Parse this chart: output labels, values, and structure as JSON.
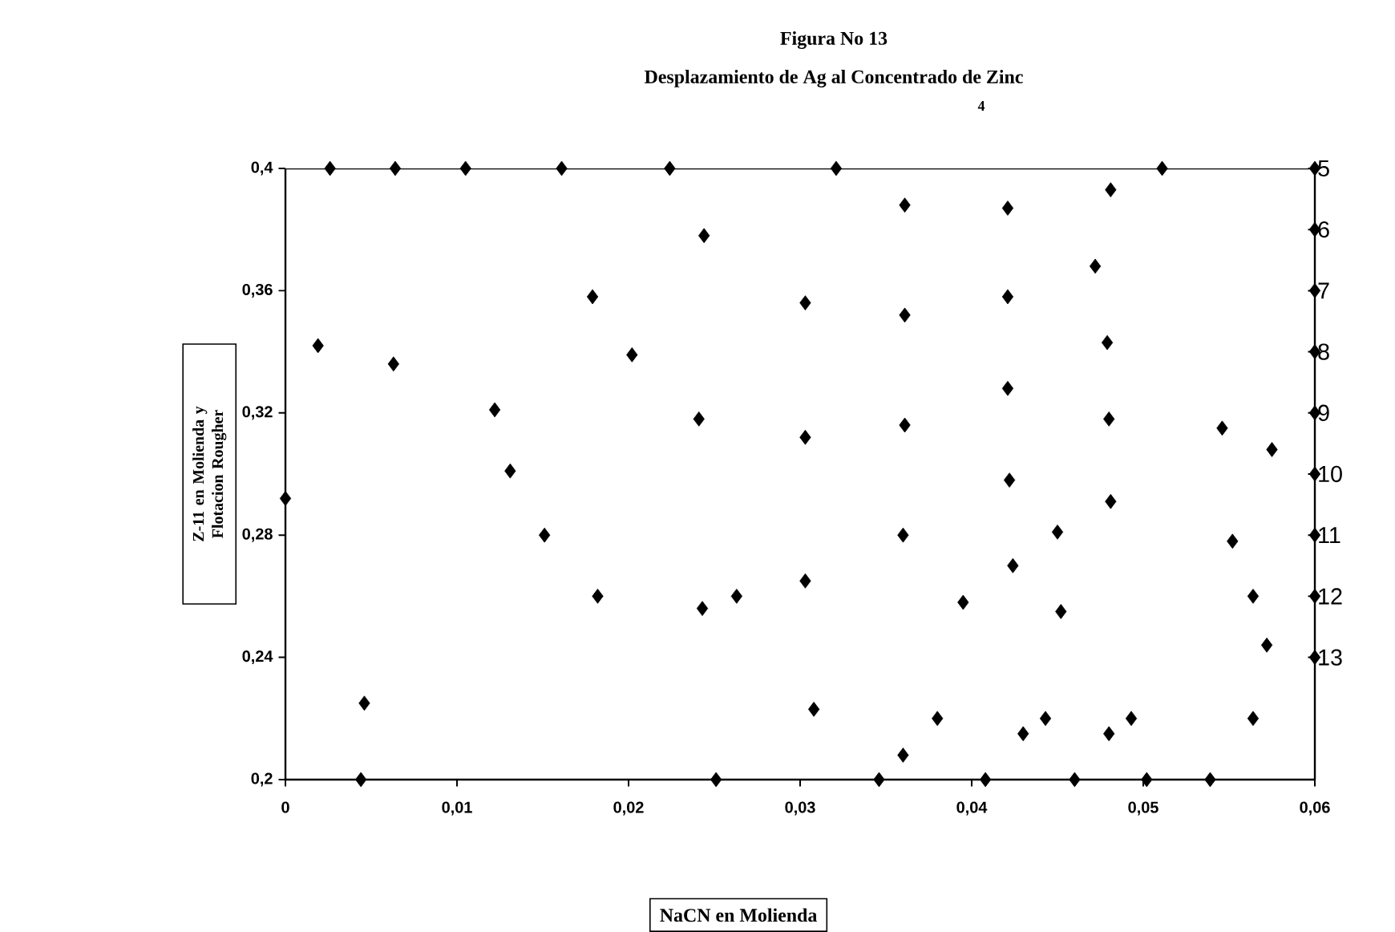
{
  "chart_data": {
    "type": "scatter",
    "title": "Figura No 13",
    "subtitle": "Desplazamiento de Ag al Concentrado de Zinc",
    "xlabel": "NaCN en Molienda",
    "ylabel": "Z-11 en Molienda y Flotacion Rougher",
    "annotations": [
      "4"
    ],
    "x": [
      0.0026,
      0.0064,
      0.0105,
      0.0161,
      0.0224,
      0.0321,
      0.0511,
      0.06,
      0.0044,
      0.0251,
      0.0346,
      0.0408,
      0.046,
      0.0502,
      0.0539,
      0.06,
      0.06,
      0.06,
      0.06,
      0.06,
      0.06,
      0.06,
      0.06,
      0.0019,
      0.0063,
      0.0046,
      0.0,
      0.0122,
      0.0131,
      0.0151,
      0.0182,
      0.0179,
      0.0202,
      0.0244,
      0.0241,
      0.0243,
      0.0263,
      0.0303,
      0.0303,
      0.0303,
      0.0308,
      0.0361,
      0.0361,
      0.0361,
      0.036,
      0.036,
      0.038,
      0.0395,
      0.0421,
      0.0421,
      0.0421,
      0.0422,
      0.0424,
      0.043,
      0.0443,
      0.045,
      0.0452,
      0.0481,
      0.0472,
      0.0479,
      0.048,
      0.0481,
      0.048,
      0.0493,
      0.0546,
      0.0575,
      0.0552,
      0.0564,
      0.0572,
      0.0564
    ],
    "values": [
      0.4,
      0.4,
      0.4,
      0.4,
      0.4,
      0.4,
      0.4,
      0.4,
      0.2,
      0.2,
      0.2,
      0.2,
      0.2,
      0.2,
      0.2,
      0.38,
      0.36,
      0.34,
      0.32,
      0.3,
      0.28,
      0.26,
      0.24,
      0.342,
      0.336,
      0.225,
      0.292,
      0.321,
      0.301,
      0.28,
      0.26,
      0.358,
      0.339,
      0.378,
      0.318,
      0.256,
      0.26,
      0.356,
      0.312,
      0.265,
      0.223,
      0.388,
      0.352,
      0.316,
      0.28,
      0.208,
      0.22,
      0.258,
      0.387,
      0.358,
      0.328,
      0.298,
      0.27,
      0.215,
      0.22,
      0.281,
      0.255,
      0.393,
      0.368,
      0.343,
      0.318,
      0.291,
      0.215,
      0.22,
      0.315,
      0.308,
      0.278,
      0.26,
      0.244,
      0.22
    ],
    "color": "#000000",
    "marker": "diamond",
    "grid": false,
    "xlim": [
      0,
      0.06
    ],
    "xticks": [
      0,
      {
        "value": 0.01,
        "label": "0,01"
      },
      {
        "value": 0.02,
        "label": "0,02"
      },
      {
        "value": 0.03,
        "label": "0,03"
      },
      {
        "value": 0.04,
        "label": "0,04"
      },
      {
        "value": 0.05,
        "label": "0,05"
      },
      {
        "value": 0.06,
        "label": "0,06"
      }
    ],
    "ylim": [
      0.2,
      0.4
    ],
    "yticks": [
      {
        "value": 0.2,
        "label": "0,2"
      },
      {
        "value": 0.24,
        "label": "0,24"
      },
      {
        "value": 0.28,
        "label": "0,28"
      },
      {
        "value": 0.32,
        "label": "0,32"
      },
      {
        "value": 0.36,
        "label": "0,36"
      },
      {
        "value": 0.4,
        "label": "0,4"
      }
    ],
    "y2lim": [
      15,
      5
    ],
    "y2ticks": [
      5,
      6,
      7,
      8,
      9,
      10,
      11,
      12,
      13
    ]
  }
}
